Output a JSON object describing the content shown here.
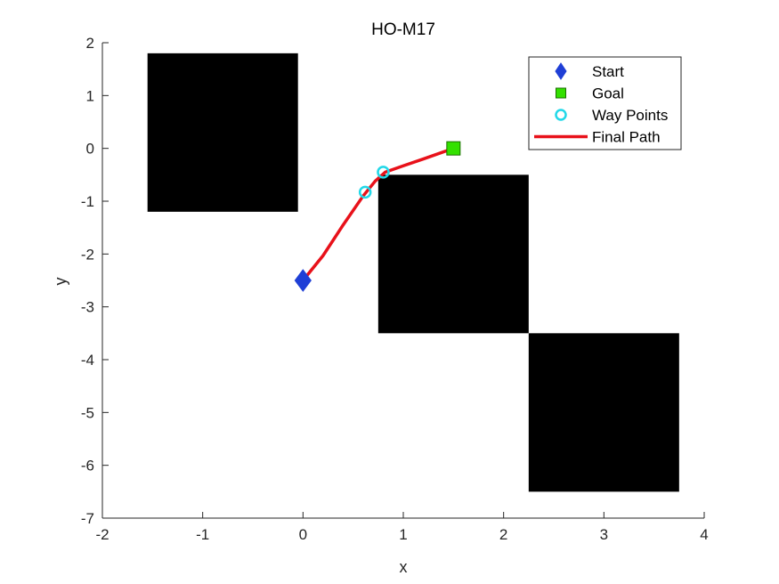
{
  "chart_data": {
    "type": "scatter",
    "title": "HO-M17",
    "xlabel": "x",
    "ylabel": "y",
    "xlim": [
      -2,
      4
    ],
    "ylim": [
      -7,
      2
    ],
    "xticks": [
      -2,
      -1,
      0,
      1,
      2,
      3,
      4
    ],
    "yticks": [
      2,
      1,
      0,
      -1,
      -2,
      -3,
      -4,
      -5,
      -6,
      -7
    ],
    "grid": false,
    "legend_position": "top-right",
    "obstacles": [
      {
        "x": [
          -1.55,
          -0.05
        ],
        "y": [
          -1.2,
          1.8
        ]
      },
      {
        "x": [
          0.75,
          2.25
        ],
        "y": [
          -3.5,
          -0.5
        ]
      },
      {
        "x": [
          2.25,
          3.75
        ],
        "y": [
          -6.5,
          -3.5
        ]
      }
    ],
    "series": [
      {
        "name": "Start",
        "marker": "diamond",
        "color": "#1f3fd6",
        "points": [
          [
            0,
            -2.5
          ]
        ]
      },
      {
        "name": "Goal",
        "marker": "square",
        "color": "#33e000",
        "points": [
          [
            1.5,
            0
          ]
        ]
      },
      {
        "name": "Way Points",
        "marker": "circle",
        "color": "#22d8e8",
        "points": [
          [
            0.62,
            -0.83
          ],
          [
            0.8,
            -0.45
          ]
        ]
      },
      {
        "name": "Final Path",
        "marker": "line",
        "color": "#e8111a",
        "points": [
          [
            0,
            -2.5
          ],
          [
            0.2,
            -2.03
          ],
          [
            0.4,
            -1.45
          ],
          [
            0.6,
            -0.9
          ],
          [
            0.72,
            -0.62
          ],
          [
            0.82,
            -0.45
          ],
          [
            1.0,
            -0.33
          ],
          [
            1.2,
            -0.2
          ],
          [
            1.5,
            0
          ]
        ]
      }
    ]
  }
}
